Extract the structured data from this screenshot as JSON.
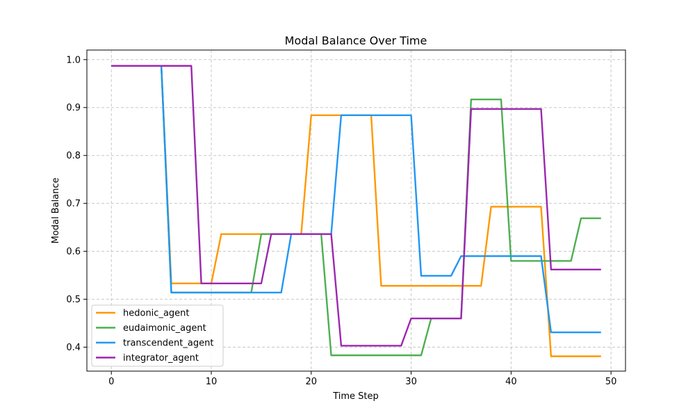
{
  "chart_data": {
    "type": "line",
    "title": "Modal Balance Over Time",
    "xlabel": "Time Step",
    "ylabel": "Modal Balance",
    "xlim": [
      -2.45,
      51.45
    ],
    "ylim": [
      0.35,
      1.02
    ],
    "xticks": [
      0,
      10,
      20,
      30,
      40,
      50
    ],
    "yticks": [
      0.4,
      0.5,
      0.6,
      0.7,
      0.8,
      0.9,
      1.0
    ],
    "ytick_labels": [
      "0.4",
      "0.5",
      "0.6",
      "0.7",
      "0.8",
      "0.9",
      "1.0"
    ],
    "grid": true,
    "legend_position": "lower-left",
    "series": [
      {
        "name": "hedonic_agent",
        "color": "#ff9800",
        "x": [
          0,
          5,
          6,
          10,
          11,
          19,
          20,
          26,
          27,
          37,
          38,
          43,
          44,
          49
        ],
        "y": [
          0.987,
          0.987,
          0.533,
          0.533,
          0.636,
          0.636,
          0.884,
          0.884,
          0.528,
          0.528,
          0.693,
          0.693,
          0.381,
          0.381
        ]
      },
      {
        "name": "eudaimonic_agent",
        "color": "#4caf50",
        "x": [
          0,
          5,
          6,
          14,
          15,
          21,
          22,
          31,
          32,
          35,
          36,
          39,
          40,
          46,
          47,
          49
        ],
        "y": [
          0.987,
          0.987,
          0.514,
          0.514,
          0.636,
          0.636,
          0.383,
          0.383,
          0.46,
          0.46,
          0.917,
          0.917,
          0.58,
          0.58,
          0.669,
          0.669
        ]
      },
      {
        "name": "transcendent_agent",
        "color": "#2196f3",
        "x": [
          0,
          5,
          6,
          17,
          18,
          22,
          23,
          30,
          31,
          34,
          35,
          43,
          44,
          49
        ],
        "y": [
          0.987,
          0.987,
          0.514,
          0.514,
          0.636,
          0.636,
          0.884,
          0.884,
          0.549,
          0.549,
          0.59,
          0.59,
          0.431,
          0.431
        ]
      },
      {
        "name": "integrator_agent",
        "color": "#9c27b0",
        "x": [
          0,
          8,
          9,
          15,
          16,
          22,
          23,
          29,
          30,
          35,
          36,
          43,
          44,
          49
        ],
        "y": [
          0.987,
          0.987,
          0.533,
          0.533,
          0.636,
          0.636,
          0.403,
          0.403,
          0.46,
          0.46,
          0.897,
          0.897,
          0.562,
          0.562
        ]
      }
    ]
  }
}
